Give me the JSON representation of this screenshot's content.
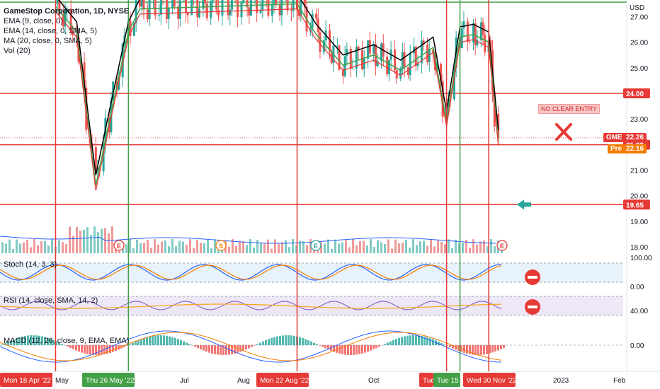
{
  "chart_data": {
    "type": "candlestick",
    "title": "GameStop Corporation, 1D, NYSE",
    "currency_label": "USD",
    "indicators_legend": [
      "EMA (9, close, 0)",
      "EMA (14, close, 0, SMA, 5)",
      "MA (20, close, 0, SMA, 5)",
      "Vol (20)"
    ],
    "ticker_tag": {
      "symbol": "GME",
      "value": "22.26"
    },
    "pre_tag": {
      "label": "Pre",
      "value": "22.16"
    },
    "price_axis_ticks": [
      "27.00",
      "26.00",
      "25.00",
      "23.00",
      "21.00",
      "20.00",
      "19.00",
      "18.00"
    ],
    "price_axis_range": [
      17.75,
      27.65
    ],
    "horizontal_levels": [
      {
        "value": 24.0,
        "label": "24.00",
        "color": "#e53935"
      },
      {
        "value": 21.99,
        "label": "21.99",
        "color": "#e53935"
      },
      {
        "value": 19.65,
        "label": "19.65",
        "color": "#e53935"
      }
    ],
    "annotation": "NO CLEAR ENTRY",
    "stoch": {
      "label": "Stoch (14, 3, 3)",
      "ticks": [
        "100.00",
        "0.00"
      ]
    },
    "rsi": {
      "label": "RSI (14, close, SMA, 14, 2)",
      "ticks": [
        "40.00"
      ]
    },
    "macd": {
      "label": "MACD (12, 26, close, 9, EMA, EMA)",
      "ticks": [
        "0.00"
      ]
    },
    "time_axis_months": [
      "May",
      "Jul",
      "Aug",
      "Oct",
      "2023",
      "Feb"
    ],
    "time_axis_flags": [
      {
        "label": "Mon 18 Apr '22",
        "color": "#e53935"
      },
      {
        "label": "Thu 26 May '22",
        "color": "#43a047"
      },
      {
        "label": "Mon 22 Aug '22",
        "color": "#e53935"
      },
      {
        "label": "Tue",
        "color": "#e53935"
      },
      {
        "label": "Tue 15 I",
        "color": "#43a047"
      },
      {
        "label": "Wed 30 Nov '22",
        "color": "#e53935"
      }
    ],
    "event_markers": [
      "E",
      "S",
      "E",
      "E"
    ],
    "vertical_markers": [
      {
        "date": "2022-04-18",
        "color": "#e53935"
      },
      {
        "date": "2022-05-26",
        "color": "#43a047"
      },
      {
        "date": "2022-08-22",
        "color": "#e53935"
      },
      {
        "date": "2022-11-08",
        "color": "#e53935"
      },
      {
        "date": "2022-11-15",
        "color": "#43a047"
      },
      {
        "date": "2022-11-30",
        "color": "#e53935"
      }
    ],
    "price_series": {
      "dates": [
        "2022-04-18",
        "2022-04-29",
        "2022-05-09",
        "2022-05-16",
        "2022-05-26",
        "2022-06-01",
        "2022-08-22",
        "2022-09-01",
        "2022-09-15",
        "2022-10-01",
        "2022-10-15",
        "2022-11-01",
        "2022-11-08",
        "2022-11-15",
        "2022-11-22",
        "2022-11-30",
        "2022-12-05"
      ],
      "close": [
        27.5,
        26.5,
        20.5,
        23.0,
        26.5,
        27.4,
        27.6,
        26.4,
        25.2,
        25.6,
        25.0,
        25.9,
        23.0,
        26.3,
        26.4,
        26.1,
        22.26
      ]
    }
  }
}
